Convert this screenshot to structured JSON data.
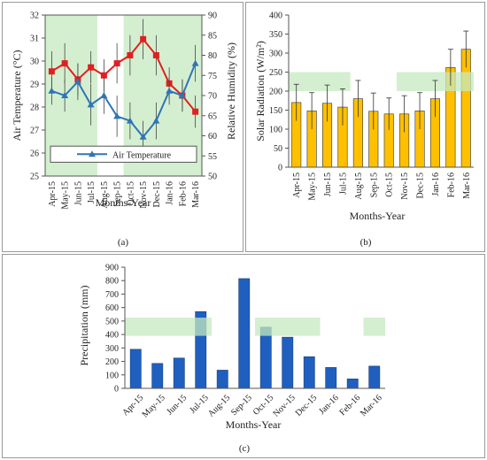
{
  "chart_data": [
    {
      "panel": "(a)",
      "type": "line",
      "xlabel": "Months-Year",
      "ylabel": "Air Temperature (°C)",
      "y2label": "Relative Humidity (%)",
      "categories": [
        "Apr-15",
        "May-15",
        "Jun-15",
        "Jul-15",
        "Aug-15",
        "Sep-15",
        "Oct-15",
        "Nov-15",
        "Dec-15",
        "Jan-16",
        "Feb-16",
        "Mar-16"
      ],
      "ylim": [
        25,
        32
      ],
      "yticks": [
        25,
        26,
        27,
        28,
        29,
        30,
        31,
        32
      ],
      "y2lim": [
        50,
        90
      ],
      "y2ticks": [
        50,
        55,
        60,
        65,
        70,
        75,
        80,
        85,
        90
      ],
      "legend_position": "inside lower-left",
      "series": [
        {
          "name": "Air Temperature",
          "axis": "left",
          "color": "#2e75b6",
          "marker": "triangle",
          "values": [
            28.7,
            28.5,
            29.1,
            28.1,
            28.5,
            27.6,
            27.4,
            26.7,
            27.4,
            28.7,
            28.5,
            29.9
          ],
          "err": [
            0.6,
            0.7,
            0.8,
            0.9,
            0.8,
            0.9,
            0.8,
            0.7,
            0.8,
            0.6,
            0.7,
            0.8
          ]
        },
        {
          "axis": "right",
          "color": "#e02020",
          "marker": "square",
          "values": [
            76,
            78,
            74,
            77,
            75,
            78,
            80,
            84,
            80,
            73,
            70,
            66
          ],
          "err": [
            5,
            5,
            4,
            4,
            4,
            5,
            5,
            5,
            5,
            4,
            4,
            4
          ]
        }
      ],
      "shaded_spans": [
        {
          "from": "Apr-15",
          "to": "Jul-15"
        },
        {
          "from": "Oct-15",
          "to": "Mar-16"
        }
      ]
    },
    {
      "panel": "(b)",
      "type": "bar",
      "xlabel": "Months-Year",
      "ylabel": "Solar Radiation (W/m²)",
      "categories": [
        "Apr-15",
        "May-15",
        "Jun-15",
        "Jul-15",
        "Aug-15",
        "Sep-15",
        "Oct-15",
        "Nov-15",
        "Dec-15",
        "Jan-16",
        "Feb-16",
        "Mar-16"
      ],
      "ylim": [
        0,
        400
      ],
      "yticks": [
        0,
        50,
        100,
        150,
        200,
        250,
        300,
        350,
        400
      ],
      "series": [
        {
          "color": "#ffc000",
          "values": [
            170,
            148,
            168,
            158,
            180,
            147,
            140,
            140,
            148,
            180,
            262,
            310
          ],
          "err": [
            48,
            48,
            48,
            48,
            48,
            48,
            42,
            48,
            48,
            48,
            48,
            48
          ]
        }
      ],
      "shaded_spans": [
        {
          "from": "Apr-15",
          "to": "Jul-15"
        },
        {
          "from": "Nov-15",
          "to": "Mar-16"
        }
      ]
    },
    {
      "panel": "(c)",
      "type": "bar",
      "xlabel": "Months-Year",
      "ylabel": "Precipitation (mm)",
      "categories": [
        "Apr-15",
        "May-15",
        "Jun-15",
        "Jul-15",
        "Aug-15",
        "Sep-15",
        "Oct-15",
        "Nov-15",
        "Dec-15",
        "Jan-16",
        "Feb-16",
        "Mar-16"
      ],
      "ylim": [
        0,
        900
      ],
      "yticks": [
        0,
        100,
        200,
        300,
        400,
        500,
        600,
        700,
        800,
        900
      ],
      "series": [
        {
          "color": "#1f5fbf",
          "values": [
            290,
            185,
            225,
            570,
            135,
            815,
            455,
            380,
            235,
            155,
            70,
            165
          ]
        }
      ],
      "shaded_spans": [
        {
          "from": "Apr-15",
          "to": "Jul-15"
        },
        {
          "from": "Oct-15",
          "to": "Dec-15"
        },
        {
          "from": "Mar-16",
          "to": "Mar-16"
        }
      ]
    }
  ],
  "colors": {
    "shade": "#c6e9c0",
    "axis": "#555555",
    "grid": "#d9d9d9"
  }
}
